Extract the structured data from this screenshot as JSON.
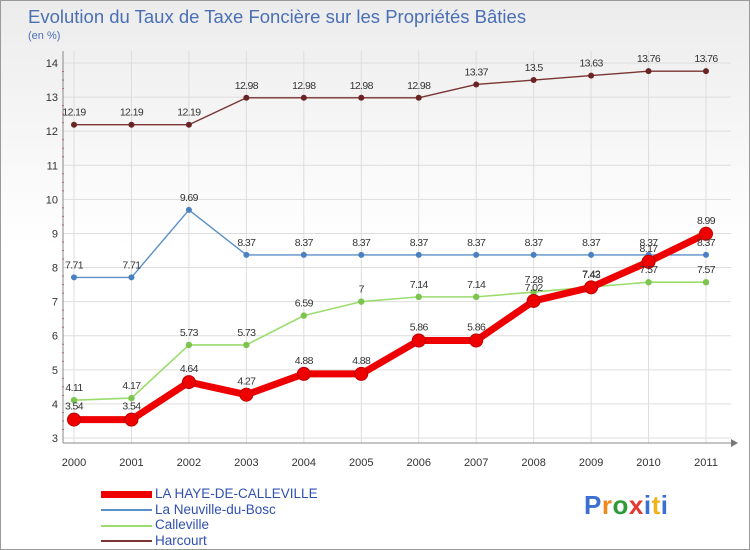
{
  "title": "Evolution du Taux de Taxe Foncière sur les Propriétés Bâties",
  "unit_label": "(en %)",
  "logo": {
    "text": "Proxiti",
    "colors": [
      "#3b6fd0",
      "#f08a1c",
      "#2f9a3a",
      "#e23a30",
      "#3b6fd0",
      "#f0b31c",
      "#3b6fd0"
    ]
  },
  "chart_data": {
    "type": "line",
    "title": "Evolution du Taux de Taxe Foncière sur les Propriétés Bâties",
    "ylabel": "(en %)",
    "xlabel": "",
    "x": [
      "2000",
      "2001",
      "2002",
      "2003",
      "2004",
      "2005",
      "2006",
      "2007",
      "2008",
      "2009",
      "2010",
      "2011"
    ],
    "ylim": [
      3,
      14
    ],
    "yticks": [
      "3",
      "4",
      "5",
      "6",
      "7",
      "8",
      "9",
      "10",
      "11",
      "12",
      "13",
      "14"
    ],
    "grid": true,
    "series": [
      {
        "name": "Harcourt",
        "color": "#7a3434",
        "values": [
          12.19,
          12.19,
          12.19,
          12.98,
          12.98,
          12.98,
          12.98,
          13.37,
          13.5,
          13.63,
          13.76,
          13.76
        ],
        "labels": [
          "12.19",
          "12.19",
          "12.19",
          "12.98",
          "12.98",
          "12.98",
          "12.98",
          "13.37",
          "13.5",
          "13.63",
          "13.76",
          "13.76"
        ]
      },
      {
        "name": "La Neuville-du-Bosc",
        "color": "#5b8fc7",
        "values": [
          7.71,
          7.71,
          9.69,
          8.37,
          8.37,
          8.37,
          8.37,
          8.37,
          8.37,
          8.37,
          8.37,
          8.37
        ],
        "labels": [
          "7.71",
          "7.71",
          "9.69",
          "8.37",
          "8.37",
          "8.37",
          "8.37",
          "8.37",
          "8.37",
          "8.37",
          "8.37",
          "8.37"
        ]
      },
      {
        "name": "Calleville",
        "color": "#9bdc6c",
        "values": [
          4.11,
          4.17,
          5.73,
          5.73,
          6.59,
          7,
          7.14,
          7.14,
          7.28,
          7.43,
          7.57,
          7.57
        ],
        "labels": [
          "4.11",
          "4.17",
          "5.73",
          "5.73",
          "6.59",
          "7",
          "7.14",
          "7.14",
          "7.28",
          "7.43",
          "7.57",
          "7.57"
        ]
      },
      {
        "name": "LA HAYE-DE-CALLEVILLE",
        "color": "#ee0000",
        "values": [
          3.54,
          3.54,
          4.64,
          4.27,
          4.88,
          4.88,
          5.86,
          5.86,
          7.02,
          7.42,
          8.17,
          8.99
        ],
        "labels": [
          "3.54",
          "3.54",
          "4.64",
          "4.27",
          "4.88",
          "4.88",
          "5.86",
          "5.86",
          "7.02",
          "7.42",
          "8.17",
          "8.99"
        ]
      }
    ],
    "legend": [
      {
        "name": "LA HAYE-DE-CALLEVILLE",
        "color": "#ee0000"
      },
      {
        "name": "La Neuville-du-Bosc",
        "color": "#5b8fc7"
      },
      {
        "name": "Calleville",
        "color": "#9bdc6c"
      },
      {
        "name": "Harcourt",
        "color": "#7a3434"
      }
    ]
  }
}
